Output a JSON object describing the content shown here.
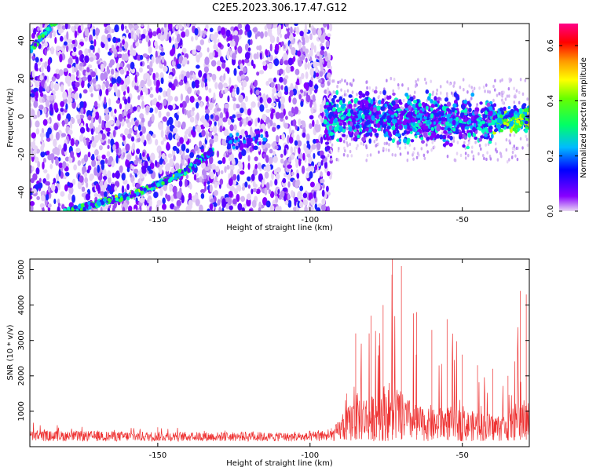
{
  "title": "C2E5.2023.306.17.47.G12",
  "chart_data": [
    {
      "type": "heatmap",
      "xlabel": "Height of straight line (km)",
      "ylabel": "Frequency (Hz)",
      "xlim": [
        -192,
        -28
      ],
      "ylim": [
        -50,
        49
      ],
      "x_ticks": [
        -150,
        -100,
        -50
      ],
      "y_ticks": [
        -40,
        -20,
        0,
        20,
        40
      ],
      "colorbar": {
        "label": "Normalized spectral amplitude",
        "range": [
          0,
          0.68
        ],
        "ticks": [
          0,
          0.2,
          0.4,
          0.6
        ],
        "tick_labels": [
          "0.0",
          "0.2",
          "0.4",
          "0.6"
        ],
        "colormap": "rainbow"
      },
      "features": [
        {
          "name": "diagonal echo trace",
          "x": [
            -192,
            -180,
            -170,
            -160,
            -150,
            -140,
            -135
          ],
          "y": [
            35,
            45,
            -48,
            -44,
            -36,
            -28,
            -20
          ]
        },
        {
          "name": "near-zero band",
          "x": [
            -95,
            -80,
            -60,
            -40,
            -30
          ],
          "y": [
            -3,
            0,
            -1,
            -2,
            -1
          ]
        }
      ],
      "noise_region_end_x": -93
    },
    {
      "type": "line",
      "xlabel": "Height of straight line (km)",
      "ylabel": "SNR (10 * v/v)",
      "xlim": [
        -192,
        -28
      ],
      "ylim": [
        0,
        5300
      ],
      "x_ticks": [
        -150,
        -100,
        -50
      ],
      "y_ticks": [
        1000,
        2000,
        3000,
        4000,
        5000
      ],
      "color": "#ee3333",
      "envelope": {
        "x": [
          -192,
          -150,
          -100,
          -93,
          -88,
          -85,
          -80,
          -76,
          -73,
          -70,
          -65,
          -60,
          -55,
          -50,
          -45,
          -40,
          -35,
          -31,
          -29
        ],
        "y_max": [
          700,
          550,
          450,
          520,
          1500,
          3200,
          3700,
          4000,
          5300,
          5100,
          3800,
          3300,
          3600,
          2600,
          2300,
          2200,
          2000,
          4400,
          4300
        ],
        "y_typical": [
          400,
          380,
          350,
          400,
          900,
          1300,
          1200,
          1500,
          1600,
          1300,
          1000,
          900,
          1000,
          900,
          850,
          800,
          800,
          1200,
          1100
        ]
      }
    }
  ]
}
